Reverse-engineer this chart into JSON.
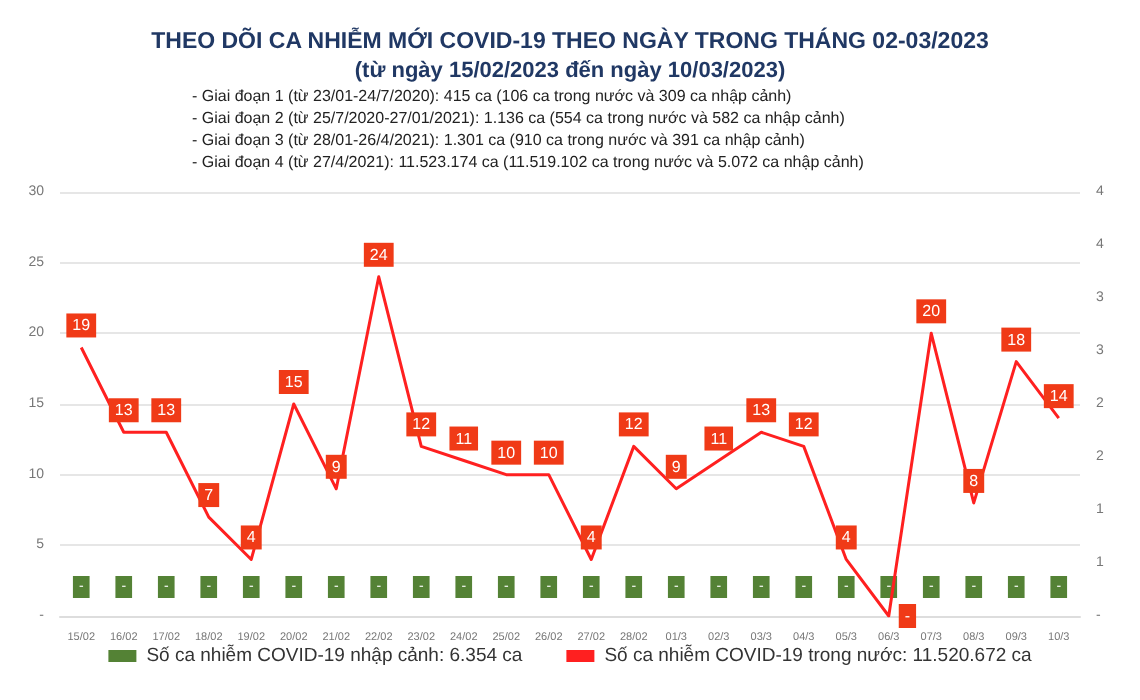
{
  "chart_data": {
    "type": "bar",
    "title": "THEO DÕI CA NHIỄM MỚI COVID-19 THEO NGÀY TRONG THÁNG 02-03/2023",
    "subtitle": "(từ ngày 15/02/2023 đến ngày 10/03/2023)",
    "annotations": [
      "- Giai đoạn 1 (từ 23/01-24/7/2020): 415 ca (106 ca trong nước và 309 ca nhập cảnh)",
      "- Giai đoạn 2 (từ 25/7/2020-27/01/2021): 1.136 ca (554 ca trong nước và 582 ca nhập cảnh)",
      "- Giai đoạn 3 (từ 28/01-26/4/2021): 1.301 ca (910 ca trong nước và 391 ca nhập cảnh)",
      "- Giai đoạn 4 (từ 27/4/2021): 11.523.174 ca (11.519.102 ca trong nước và 5.072 ca nhập cảnh)"
    ],
    "categories": [
      "15/02",
      "16/02",
      "17/02",
      "18/02",
      "19/02",
      "20/02",
      "21/02",
      "22/02",
      "23/02",
      "24/02",
      "25/02",
      "26/02",
      "27/02",
      "28/02",
      "01/3",
      "02/3",
      "03/3",
      "04/3",
      "05/3",
      "06/3",
      "07/3",
      "08/3",
      "09/3",
      "10/3"
    ],
    "series": [
      {
        "name": "Số ca nhiễm COVID-19 nhập cảnh: 6.354 ca",
        "color": "#548235",
        "values": [
          0,
          0,
          0,
          0,
          0,
          0,
          0,
          0,
          0,
          0,
          0,
          0,
          0,
          0,
          0,
          0,
          0,
          0,
          0,
          0,
          0,
          0,
          0,
          0
        ],
        "value_labels": [
          "-",
          "-",
          "-",
          "-",
          "-",
          "-",
          "-",
          "-",
          "-",
          "-",
          "-",
          "-",
          "-",
          "-",
          "-",
          "-",
          "-",
          "-",
          "-",
          "-",
          "-",
          "-",
          "-",
          "-"
        ]
      },
      {
        "name": "Số ca nhiễm COVID-19 trong nước: 11.520.672 ca",
        "type": "line",
        "color": "#ff2020",
        "values": [
          19,
          13,
          13,
          7,
          4,
          15,
          9,
          24,
          12,
          11,
          10,
          10,
          4,
          12,
          9,
          11,
          13,
          12,
          4,
          0,
          20,
          8,
          18,
          14
        ],
        "value_labels": [
          "19",
          "13",
          "13",
          "7",
          "4",
          "15",
          "9",
          "24",
          "12",
          "11",
          "10",
          "10",
          "4",
          "12",
          "9",
          "11",
          "13",
          "12",
          "4",
          "-",
          "20",
          "8",
          "18",
          "14"
        ]
      }
    ],
    "ylim": [
      0,
      30
    ],
    "yticks": [
      {
        "value": 0,
        "label": "-"
      },
      5,
      10,
      15,
      20,
      25,
      30
    ],
    "y2lim": [
      0,
      4
    ],
    "y2ticks": [
      {
        "value": 0,
        "label": "-"
      },
      {
        "value": 0.5,
        "label": "1"
      },
      {
        "value": 1,
        "label": "1"
      },
      {
        "value": 1.5,
        "label": "2"
      },
      {
        "value": 2,
        "label": "2"
      },
      {
        "value": 2.5,
        "label": "3"
      },
      {
        "value": 3,
        "label": "3"
      },
      {
        "value": 3.5,
        "label": "4"
      },
      {
        "value": 4,
        "label": "4"
      }
    ],
    "grid": "y",
    "legend": "bottom",
    "marker": "none",
    "line_style": "solid"
  }
}
